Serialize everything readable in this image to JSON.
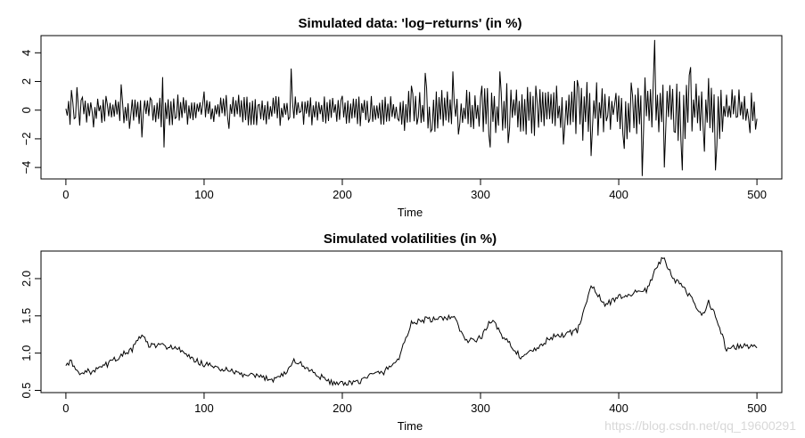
{
  "chart_data": [
    {
      "type": "line",
      "title": "Simulated data: 'log−returns' (in %)",
      "xlabel": "Time",
      "ylabel": "",
      "xlim": [
        -18,
        518
      ],
      "ylim": [
        -4.8,
        5.2
      ],
      "xticks": [
        0,
        100,
        200,
        300,
        400,
        500
      ],
      "yticks": [
        -4,
        -2,
        0,
        2,
        4
      ],
      "ytick_labels": [
        "−4",
        "−2",
        "0",
        "2",
        "4"
      ],
      "grid": false,
      "legend": "none",
      "color": "#000000",
      "x": [
        0,
        500
      ],
      "series_note": "",
      "keypoints": [
        [
          0,
          0.1
        ],
        [
          4,
          1.4
        ],
        [
          6,
          -0.6
        ],
        [
          8,
          1.6
        ],
        [
          12,
          0.9
        ],
        [
          20,
          -1.2
        ],
        [
          30,
          0.4
        ],
        [
          40,
          1.8
        ],
        [
          46,
          -1.3
        ],
        [
          55,
          -1.9
        ],
        [
          62,
          0.7
        ],
        [
          70,
          2.3
        ],
        [
          71,
          -2.6
        ],
        [
          80,
          -0.5
        ],
        [
          100,
          1.3
        ],
        [
          118,
          -1.3
        ],
        [
          140,
          0.4
        ],
        [
          162,
          -0.5
        ],
        [
          163,
          2.9
        ],
        [
          170,
          -0.1
        ],
        [
          200,
          1.0
        ],
        [
          220,
          -0.6
        ],
        [
          240,
          -0.6
        ],
        [
          250,
          1.7
        ],
        [
          254,
          -1.0
        ],
        [
          260,
          2.6
        ],
        [
          264,
          -1.5
        ],
        [
          280,
          2.7
        ],
        [
          284,
          -1.7
        ],
        [
          300,
          0.9
        ],
        [
          307,
          -2.6
        ],
        [
          314,
          2.7
        ],
        [
          320,
          -2.3
        ],
        [
          340,
          1.7
        ],
        [
          360,
          -2.4
        ],
        [
          370,
          2.1
        ],
        [
          380,
          -3.2
        ],
        [
          392,
          -0.4
        ],
        [
          398,
          1.2
        ],
        [
          404,
          -2.7
        ],
        [
          410,
          1.0
        ],
        [
          417,
          -4.6
        ],
        [
          426,
          4.9
        ],
        [
          433,
          -4.0
        ],
        [
          440,
          -1.5
        ],
        [
          446,
          -4.2
        ],
        [
          452,
          3.0
        ],
        [
          462,
          -2.9
        ],
        [
          470,
          -4.2
        ],
        [
          485,
          -0.5
        ],
        [
          495,
          -1.6
        ],
        [
          500,
          -0.6
        ]
      ]
    },
    {
      "type": "line",
      "title": "Simulated volatilities (in %)",
      "xlabel": "Time",
      "ylabel": "",
      "xlim": [
        -18,
        518
      ],
      "ylim": [
        0.47,
        2.37
      ],
      "xticks": [
        0,
        100,
        200,
        300,
        400,
        500
      ],
      "yticks": [
        0.5,
        1.0,
        1.5,
        2.0
      ],
      "ytick_labels": [
        "0.5",
        "1.0",
        "1.5",
        "2.0"
      ],
      "grid": false,
      "legend": "none",
      "color": "#000000",
      "keypoints": [
        [
          0,
          0.83
        ],
        [
          3,
          0.9
        ],
        [
          8,
          0.75
        ],
        [
          20,
          0.75
        ],
        [
          30,
          0.85
        ],
        [
          40,
          0.97
        ],
        [
          48,
          1.05
        ],
        [
          55,
          1.25
        ],
        [
          60,
          1.1
        ],
        [
          70,
          1.1
        ],
        [
          80,
          1.07
        ],
        [
          90,
          0.93
        ],
        [
          100,
          0.85
        ],
        [
          110,
          0.8
        ],
        [
          120,
          0.75
        ],
        [
          130,
          0.7
        ],
        [
          140,
          0.68
        ],
        [
          150,
          0.65
        ],
        [
          160,
          0.75
        ],
        [
          165,
          0.9
        ],
        [
          170,
          0.85
        ],
        [
          180,
          0.73
        ],
        [
          190,
          0.62
        ],
        [
          200,
          0.58
        ],
        [
          210,
          0.6
        ],
        [
          220,
          0.7
        ],
        [
          230,
          0.75
        ],
        [
          240,
          0.9
        ],
        [
          250,
          1.4
        ],
        [
          260,
          1.45
        ],
        [
          270,
          1.45
        ],
        [
          280,
          1.5
        ],
        [
          290,
          1.15
        ],
        [
          300,
          1.2
        ],
        [
          308,
          1.45
        ],
        [
          315,
          1.25
        ],
        [
          320,
          1.15
        ],
        [
          330,
          0.93
        ],
        [
          340,
          1.05
        ],
        [
          350,
          1.2
        ],
        [
          360,
          1.25
        ],
        [
          370,
          1.3
        ],
        [
          380,
          1.9
        ],
        [
          390,
          1.65
        ],
        [
          400,
          1.75
        ],
        [
          410,
          1.8
        ],
        [
          420,
          1.85
        ],
        [
          425,
          2.05
        ],
        [
          432,
          2.3
        ],
        [
          440,
          2.0
        ],
        [
          450,
          1.8
        ],
        [
          460,
          1.5
        ],
        [
          465,
          1.7
        ],
        [
          470,
          1.5
        ],
        [
          478,
          1.05
        ],
        [
          490,
          1.1
        ],
        [
          500,
          1.08
        ]
      ]
    }
  ],
  "watermark": "https://blog.csdn.net/qq_19600291"
}
